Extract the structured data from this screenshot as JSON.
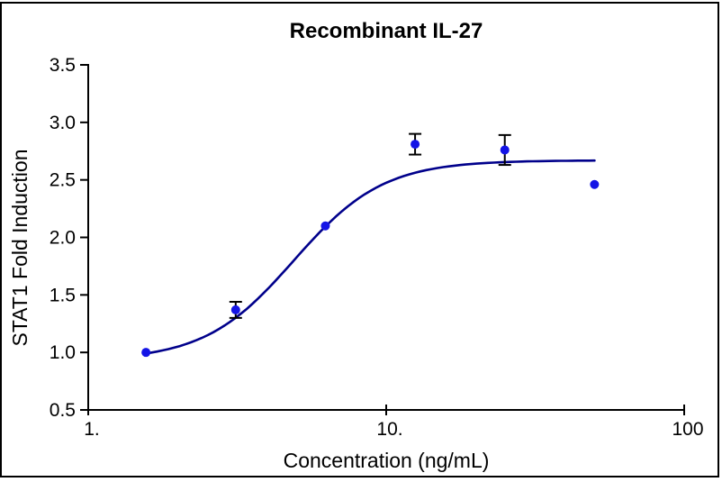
{
  "chart_data": {
    "type": "scatter",
    "title": "Recombinant IL-27",
    "xlabel": "Concentration (ng/mL)",
    "ylabel": "STAT1 Fold Induction",
    "x_scale": "log",
    "xlim": [
      1,
      100
    ],
    "ylim": [
      0.5,
      3.5
    ],
    "grid": false,
    "legend_position": "none",
    "x_ticks": [
      {
        "value": 1,
        "label": "1."
      },
      {
        "value": 10,
        "label": "10."
      },
      {
        "value": 100,
        "label": "100"
      }
    ],
    "y_ticks": [
      {
        "value": 0.5,
        "label": "0.5"
      },
      {
        "value": 1.0,
        "label": "1.0"
      },
      {
        "value": 1.5,
        "label": "1.5"
      },
      {
        "value": 2.0,
        "label": "2.0"
      },
      {
        "value": 2.5,
        "label": "2.5"
      },
      {
        "value": 3.0,
        "label": "3.0"
      },
      {
        "value": 3.5,
        "label": "3.5"
      }
    ],
    "points": [
      {
        "x": 1.5625,
        "y": 1.0,
        "error": null
      },
      {
        "x": 3.125,
        "y": 1.37,
        "error": 0.07
      },
      {
        "x": 6.25,
        "y": 2.1,
        "error": null
      },
      {
        "x": 12.5,
        "y": 2.81,
        "error": 0.09
      },
      {
        "x": 25,
        "y": 2.76,
        "error": 0.13
      },
      {
        "x": 50,
        "y": 2.46,
        "error": null
      }
    ],
    "fit_curve": {
      "model": "4PL",
      "bottom": 0.93,
      "top": 2.67,
      "ec50": 4.9,
      "hill": 2.9,
      "x_start": 1.5625,
      "x_end": 50
    },
    "colors": {
      "point": "#1414e6",
      "curve": "#00008b",
      "error_bar": "#000000",
      "axis": "#000000",
      "text": "#000000",
      "background": "#ffffff",
      "border": "#000000"
    }
  }
}
